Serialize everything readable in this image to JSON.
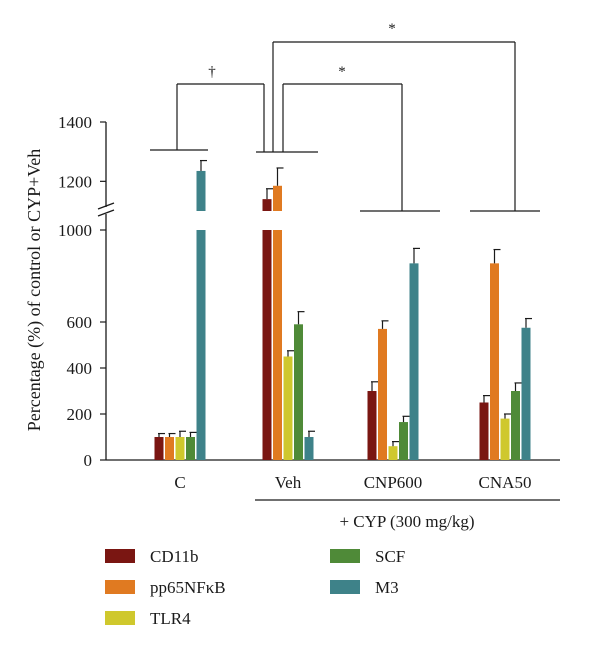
{
  "chart_data": {
    "type": "bar",
    "ylabel": "Percentage (%) of control or CYP+Veh",
    "y_axis_break": true,
    "lower_ylim": [
      0,
      1000
    ],
    "upper_ylim": [
      1100,
      1400
    ],
    "yticks": [
      {
        "value": 0,
        "label": "0"
      },
      {
        "value": 200,
        "label": "200"
      },
      {
        "value": 400,
        "label": "400"
      },
      {
        "value": 600,
        "label": "600"
      },
      {
        "value": 1000,
        "label": "1000"
      },
      {
        "value": 1200,
        "label": "1200"
      },
      {
        "value": 1400,
        "label": "1400"
      }
    ],
    "categories": [
      "C",
      "Veh",
      "CNP600",
      "CNA50"
    ],
    "group_label": "+ CYP (300 mg/kg)",
    "series": [
      {
        "name": "CD11b",
        "color": "#7a1612",
        "values": [
          100,
          1140,
          300,
          250
        ],
        "errors": [
          15,
          35,
          40,
          30
        ]
      },
      {
        "name": "pp65NFκB",
        "color": "#e07a21",
        "values": [
          100,
          1185,
          570,
          855
        ],
        "errors": [
          15,
          60,
          35,
          60
        ]
      },
      {
        "name": "TLR4",
        "color": "#cfc82d",
        "values": [
          100,
          450,
          60,
          180
        ],
        "errors": [
          25,
          25,
          20,
          20
        ]
      },
      {
        "name": "SCF",
        "color": "#4f8a38",
        "values": [
          100,
          590,
          165,
          300
        ],
        "errors": [
          20,
          55,
          25,
          35
        ]
      },
      {
        "name": "M3",
        "color": "#3e8289",
        "values": [
          1235,
          100,
          855,
          575
        ],
        "errors": [
          35,
          25,
          65,
          40
        ]
      }
    ],
    "annotations": [
      {
        "symbol": "†",
        "from": "C",
        "to": "Veh"
      },
      {
        "symbol": "*",
        "from": "Veh",
        "to": "CNP600"
      },
      {
        "symbol": "*",
        "from": "Veh",
        "to": "CNA50"
      }
    ],
    "grid": false,
    "legend_position": "bottom"
  }
}
